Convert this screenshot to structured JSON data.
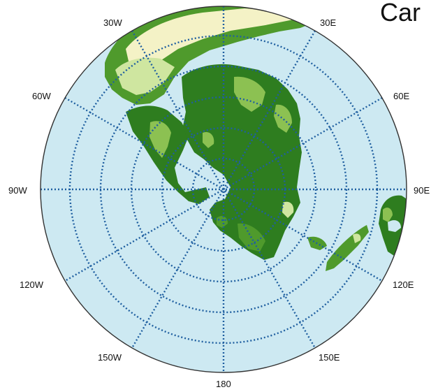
{
  "title": "Car",
  "map": {
    "projection": "polar stereographic (south-pole centered)",
    "ocean_color": "#cde9f2",
    "grid_color": "#1f5fa0",
    "land_colors": [
      "#2e7d1f",
      "#4f9a2c",
      "#8cc152",
      "#cfe6a0",
      "#f4f2c6"
    ],
    "longitude_labels": [
      "30W",
      "30E",
      "60W",
      "60E",
      "90W",
      "90E",
      "120W",
      "120E",
      "150W",
      "150E",
      "180"
    ]
  }
}
